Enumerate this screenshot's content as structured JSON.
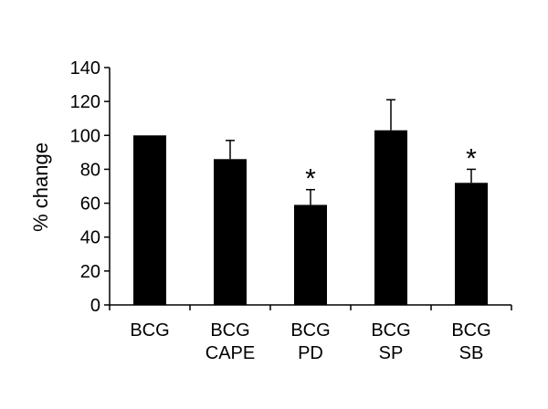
{
  "chart_data": {
    "type": "bar",
    "categories": [
      [
        "BCG"
      ],
      [
        "BCG",
        "CAPE"
      ],
      [
        "BCG",
        "PD"
      ],
      [
        "BCG",
        "SP"
      ],
      [
        "BCG",
        "SB"
      ]
    ],
    "values": [
      100,
      86,
      59,
      103,
      72
    ],
    "error_upper": [
      0,
      11,
      9,
      18,
      8
    ],
    "significance": [
      "",
      "",
      "*",
      "",
      "*"
    ],
    "ylabel": "% change",
    "xlabel": "",
    "title": "",
    "ylim": [
      0,
      140
    ],
    "yticks": [
      0,
      20,
      40,
      60,
      80,
      100,
      120,
      140
    ],
    "grid": false,
    "legend": "none",
    "bar_color": "#000000"
  }
}
